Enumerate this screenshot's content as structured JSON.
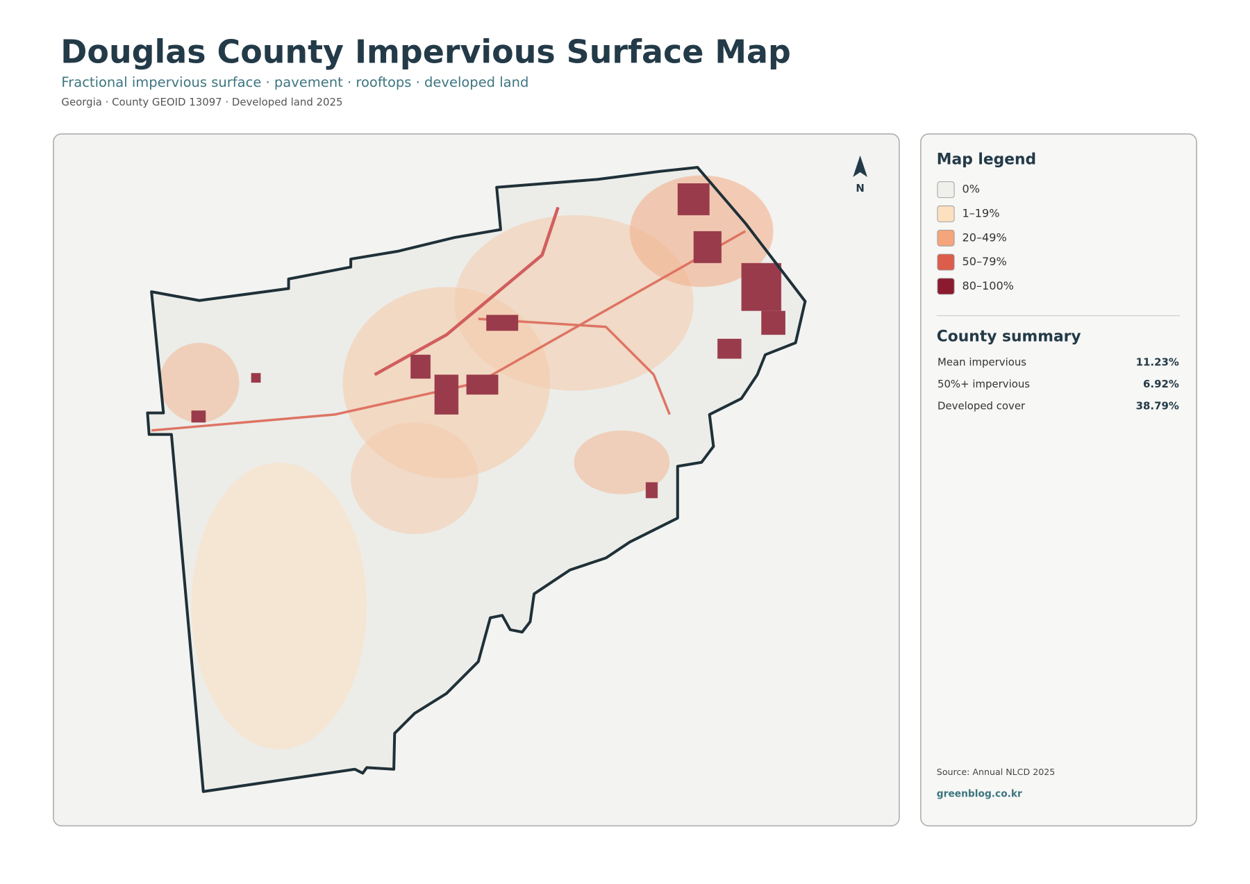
{
  "header": {
    "title": "Douglas County Impervious Surface Map",
    "subtitle": "Fractional impervious surface · pavement · rooftops · developed land",
    "meta": "Georgia · County GEOID 13097 · Developed land 2025"
  },
  "map": {
    "north_label": "N"
  },
  "legend": {
    "title": "Map legend",
    "items": [
      {
        "label": "0%",
        "color": "#efefeb"
      },
      {
        "label": "1–19%",
        "color": "#fde0c0"
      },
      {
        "label": "20–49%",
        "color": "#f4a57c"
      },
      {
        "label": "50–79%",
        "color": "#dc5d4b"
      },
      {
        "label": "80–100%",
        "color": "#8b1a2f"
      }
    ]
  },
  "summary": {
    "title": "County summary",
    "rows": [
      {
        "label": "Mean impervious",
        "value": "11.23%"
      },
      {
        "label": "50%+ impervious",
        "value": "6.92%"
      },
      {
        "label": "Developed cover",
        "value": "38.79%"
      }
    ]
  },
  "footer": {
    "source": "Source: Annual NLCD 2025",
    "site": "greenblog.co.kr"
  }
}
